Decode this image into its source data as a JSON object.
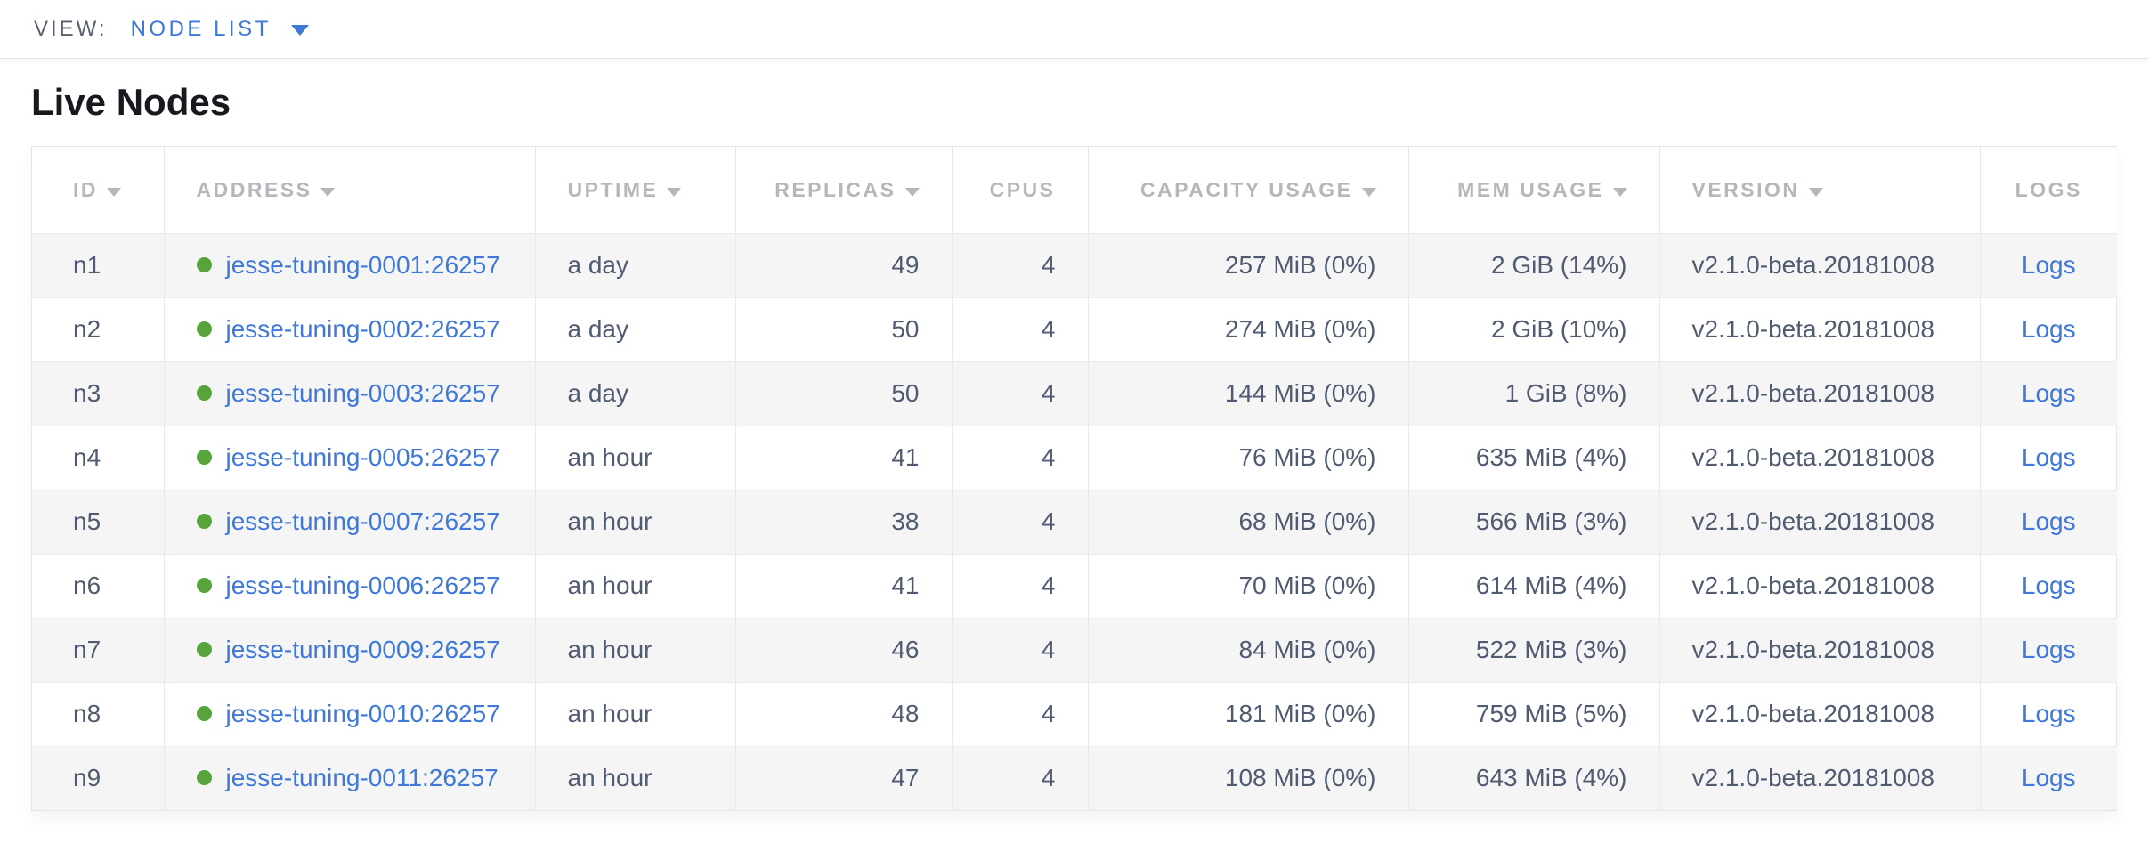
{
  "colors": {
    "link_blue": "#3e79da",
    "live_green": "#56a43b",
    "header_text": "#b5b7bb",
    "cell_text": "#505b72",
    "title_text": "#17191e",
    "stripe_bg": "#f5f5f6"
  },
  "view_bar": {
    "label": "VIEW:",
    "selected": "NODE LIST"
  },
  "page": {
    "title": "Live Nodes"
  },
  "table": {
    "logs_label": "Logs",
    "columns": [
      {
        "label": "ID",
        "sorted": true
      },
      {
        "label": "ADDRESS",
        "sorted": true
      },
      {
        "label": "UPTIME",
        "sorted": true
      },
      {
        "label": "REPLICAS",
        "sorted": true
      },
      {
        "label": "CPUS",
        "sorted": false
      },
      {
        "label": "CAPACITY USAGE",
        "sorted": true
      },
      {
        "label": "MEM USAGE",
        "sorted": true
      },
      {
        "label": "VERSION",
        "sorted": true
      },
      {
        "label": "LOGS",
        "sorted": false
      }
    ],
    "rows": [
      {
        "id": "n1",
        "address": "jesse-tuning-0001:26257",
        "uptime": "a day",
        "replicas": "49",
        "cpus": "4",
        "capacity_usage": "257 MiB (0%)",
        "mem_usage": "2 GiB (14%)",
        "version": "v2.1.0-beta.20181008"
      },
      {
        "id": "n2",
        "address": "jesse-tuning-0002:26257",
        "uptime": "a day",
        "replicas": "50",
        "cpus": "4",
        "capacity_usage": "274 MiB (0%)",
        "mem_usage": "2 GiB (10%)",
        "version": "v2.1.0-beta.20181008"
      },
      {
        "id": "n3",
        "address": "jesse-tuning-0003:26257",
        "uptime": "a day",
        "replicas": "50",
        "cpus": "4",
        "capacity_usage": "144 MiB (0%)",
        "mem_usage": "1 GiB (8%)",
        "version": "v2.1.0-beta.20181008"
      },
      {
        "id": "n4",
        "address": "jesse-tuning-0005:26257",
        "uptime": "an hour",
        "replicas": "41",
        "cpus": "4",
        "capacity_usage": "76 MiB (0%)",
        "mem_usage": "635 MiB (4%)",
        "version": "v2.1.0-beta.20181008"
      },
      {
        "id": "n5",
        "address": "jesse-tuning-0007:26257",
        "uptime": "an hour",
        "replicas": "38",
        "cpus": "4",
        "capacity_usage": "68 MiB (0%)",
        "mem_usage": "566 MiB (3%)",
        "version": "v2.1.0-beta.20181008"
      },
      {
        "id": "n6",
        "address": "jesse-tuning-0006:26257",
        "uptime": "an hour",
        "replicas": "41",
        "cpus": "4",
        "capacity_usage": "70 MiB (0%)",
        "mem_usage": "614 MiB (4%)",
        "version": "v2.1.0-beta.20181008"
      },
      {
        "id": "n7",
        "address": "jesse-tuning-0009:26257",
        "uptime": "an hour",
        "replicas": "46",
        "cpus": "4",
        "capacity_usage": "84 MiB (0%)",
        "mem_usage": "522 MiB (3%)",
        "version": "v2.1.0-beta.20181008"
      },
      {
        "id": "n8",
        "address": "jesse-tuning-0010:26257",
        "uptime": "an hour",
        "replicas": "48",
        "cpus": "4",
        "capacity_usage": "181 MiB (0%)",
        "mem_usage": "759 MiB (5%)",
        "version": "v2.1.0-beta.20181008"
      },
      {
        "id": "n9",
        "address": "jesse-tuning-0011:26257",
        "uptime": "an hour",
        "replicas": "47",
        "cpus": "4",
        "capacity_usage": "108 MiB (0%)",
        "mem_usage": "643 MiB (4%)",
        "version": "v2.1.0-beta.20181008"
      }
    ]
  }
}
